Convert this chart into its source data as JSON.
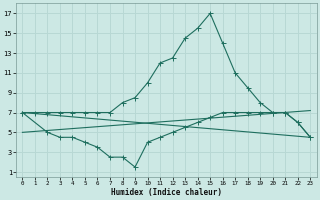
{
  "xlabel": "Humidex (Indice chaleur)",
  "xlim": [
    -0.5,
    23.5
  ],
  "ylim": [
    0.5,
    18
  ],
  "yticks": [
    1,
    3,
    5,
    7,
    9,
    11,
    13,
    15,
    17
  ],
  "xticks": [
    0,
    1,
    2,
    3,
    4,
    5,
    6,
    7,
    8,
    9,
    10,
    11,
    12,
    13,
    14,
    15,
    16,
    17,
    18,
    19,
    20,
    21,
    22,
    23
  ],
  "bg_color": "#cce8e4",
  "grid_color": "#b8d8d4",
  "line_color": "#1e6e5e",
  "line1_x": [
    0,
    1,
    2,
    3,
    4,
    5,
    6,
    7,
    8,
    9,
    10,
    11,
    12,
    13,
    14,
    15,
    16,
    17,
    18,
    19,
    20,
    21,
    22,
    23
  ],
  "line1_y": [
    7,
    7,
    7,
    7,
    7,
    7,
    7,
    7,
    8,
    8.5,
    10,
    12,
    12.5,
    14.5,
    15.5,
    17,
    14,
    11,
    9.5,
    8,
    7,
    7,
    6,
    4.5
  ],
  "line2_x": [
    0,
    2,
    3,
    4,
    5,
    6,
    7,
    8,
    9,
    10,
    11,
    12,
    13,
    14,
    15,
    16,
    17,
    18,
    19,
    20,
    21,
    22,
    23
  ],
  "line2_y": [
    7,
    5,
    4.5,
    4.5,
    4,
    3.5,
    2.5,
    2.5,
    1.5,
    4.0,
    4.5,
    5.0,
    5.5,
    6.0,
    6.5,
    7.0,
    7.0,
    7.0,
    7.0,
    7.0,
    7.0,
    6.0,
    4.5
  ],
  "line3_x": [
    0,
    23
  ],
  "line3_y": [
    7,
    4.5
  ],
  "line4_x": [
    0,
    23
  ],
  "line4_y": [
    5,
    7.2
  ]
}
